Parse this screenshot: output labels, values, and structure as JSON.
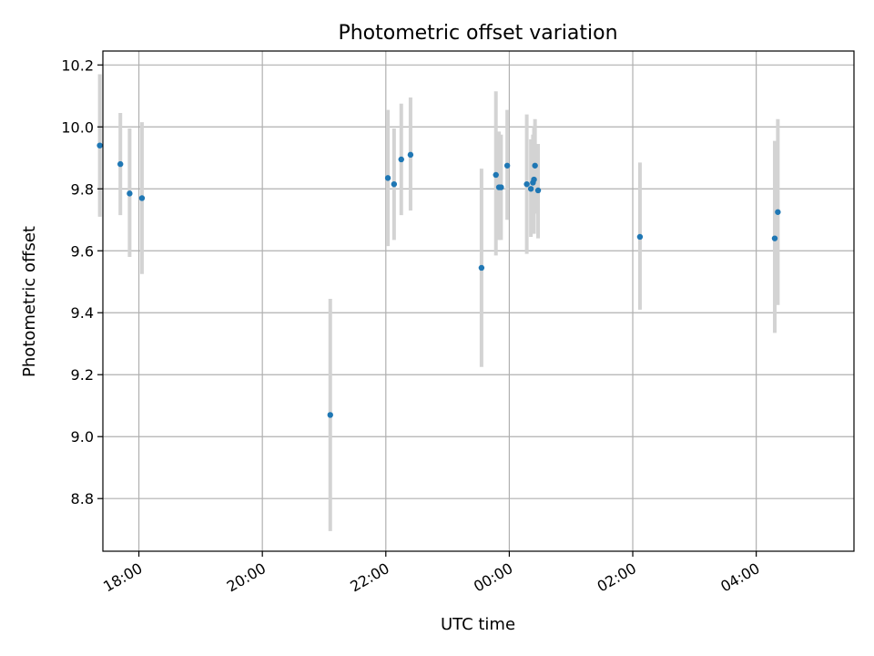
{
  "chart_data": {
    "type": "scatter",
    "title": "Photometric offset variation",
    "xlabel": "UTC time",
    "ylabel": "Photometric offset",
    "x_axis": {
      "type": "time",
      "range": [
        "17:25",
        "29:35"
      ],
      "ticks": [
        {
          "value": "18:00",
          "label": "18:00"
        },
        {
          "value": "20:00",
          "label": "20:00"
        },
        {
          "value": "22:00",
          "label": "22:00"
        },
        {
          "value": "24:00",
          "label": "00:00"
        },
        {
          "value": "26:00",
          "label": "02:00"
        },
        {
          "value": "28:00",
          "label": "04:00"
        }
      ]
    },
    "y_axis": {
      "range": [
        8.63,
        10.245
      ],
      "ticks": [
        8.8,
        9.0,
        9.2,
        9.4,
        9.6,
        9.8,
        10.0,
        10.2
      ]
    },
    "grid": true,
    "legend": "none",
    "colors": {
      "point": "#1f77b4",
      "errorbar": "#d3d3d3",
      "grid": "#b0b0b0"
    },
    "points": [
      {
        "x": "17:22",
        "y": 9.94,
        "ylow": 9.71,
        "yhigh": 10.17
      },
      {
        "x": "17:42",
        "y": 9.88,
        "ylow": 9.715,
        "yhigh": 10.045
      },
      {
        "x": "17:51",
        "y": 9.785,
        "ylow": 9.58,
        "yhigh": 9.995
      },
      {
        "x": "18:03",
        "y": 9.77,
        "ylow": 9.525,
        "yhigh": 10.015
      },
      {
        "x": "21:06",
        "y": 9.07,
        "ylow": 8.695,
        "yhigh": 9.445
      },
      {
        "x": "22:02",
        "y": 9.835,
        "ylow": 9.615,
        "yhigh": 10.055
      },
      {
        "x": "22:08",
        "y": 9.815,
        "ylow": 9.635,
        "yhigh": 9.995
      },
      {
        "x": "22:15",
        "y": 9.895,
        "ylow": 9.715,
        "yhigh": 10.075
      },
      {
        "x": "22:24",
        "y": 9.91,
        "ylow": 9.73,
        "yhigh": 10.095
      },
      {
        "x": "23:33",
        "y": 9.545,
        "ylow": 9.225,
        "yhigh": 9.865
      },
      {
        "x": "23:47",
        "y": 9.845,
        "ylow": 9.585,
        "yhigh": 10.115
      },
      {
        "x": "23:50",
        "y": 9.805,
        "ylow": 9.635,
        "yhigh": 9.985
      },
      {
        "x": "23:52",
        "y": 9.805,
        "ylow": 9.635,
        "yhigh": 9.975
      },
      {
        "x": "23:58",
        "y": 9.875,
        "ylow": 9.7,
        "yhigh": 10.055
      },
      {
        "x": "24:17",
        "y": 9.815,
        "ylow": 9.59,
        "yhigh": 10.04
      },
      {
        "x": "24:21",
        "y": 9.8,
        "ylow": 9.645,
        "yhigh": 9.96
      },
      {
        "x": "24:23",
        "y": 9.82,
        "ylow": 9.665,
        "yhigh": 9.975
      },
      {
        "x": "24:24",
        "y": 9.83,
        "ylow": 9.655,
        "yhigh": 10.0
      },
      {
        "x": "24:25",
        "y": 9.875,
        "ylow": 9.72,
        "yhigh": 10.025
      },
      {
        "x": "24:28",
        "y": 9.795,
        "ylow": 9.64,
        "yhigh": 9.945
      },
      {
        "x": "26:07",
        "y": 9.645,
        "ylow": 9.41,
        "yhigh": 9.885
      },
      {
        "x": "28:18",
        "y": 9.64,
        "ylow": 9.335,
        "yhigh": 9.955
      },
      {
        "x": "28:21",
        "y": 9.725,
        "ylow": 9.425,
        "yhigh": 10.025
      }
    ]
  }
}
